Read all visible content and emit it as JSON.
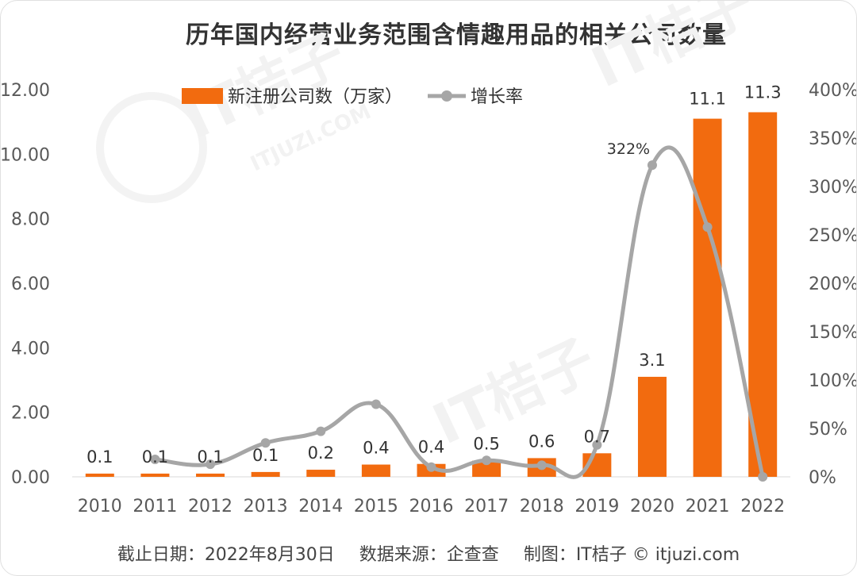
{
  "chart_data": {
    "type": "bar",
    "title": "历年国内经营业务范围含情趣用品的相关公司数量",
    "categories": [
      "2010",
      "2011",
      "2012",
      "2013",
      "2014",
      "2015",
      "2016",
      "2017",
      "2018",
      "2019",
      "2020",
      "2021",
      "2022"
    ],
    "series": [
      {
        "name": "新注册公司数（万家）",
        "type": "bar",
        "axis": "left",
        "values": [
          0.1,
          0.1,
          0.1,
          0.15,
          0.22,
          0.38,
          0.4,
          0.5,
          0.58,
          0.73,
          3.1,
          11.1,
          11.3
        ],
        "data_labels": [
          "0.1",
          "0.1",
          "0.1",
          "0.1",
          "0.2",
          "0.4",
          "0.4",
          "0.5",
          "0.6",
          "0.7",
          "3.1",
          "11.1",
          "11.3"
        ]
      },
      {
        "name": "增长率",
        "type": "line",
        "axis": "right",
        "values": [
          null,
          18,
          13,
          35,
          47,
          75,
          10,
          17,
          12,
          33,
          322,
          258,
          0
        ],
        "data_labels": {
          "2020": "322%"
        }
      }
    ],
    "y_left": {
      "ylim": [
        0,
        12
      ],
      "ticks": [
        "0.00",
        "2.00",
        "4.00",
        "6.00",
        "8.00",
        "10.00",
        "12.00"
      ]
    },
    "y_right": {
      "ylim": [
        0,
        400
      ],
      "ticks": [
        "0%",
        "50%",
        "100%",
        "150%",
        "200%",
        "250%",
        "300%",
        "350%",
        "400%"
      ]
    },
    "legend_position": "top-center",
    "colors": {
      "bar": "#f26b0f",
      "line": "#a6a6a6",
      "axis_text": "#595959",
      "title": "#333333"
    }
  },
  "footer": {
    "date": "截止日期：2022年8月30日",
    "source": "数据来源：企查查",
    "credit": "制图：IT桔子 © itjuzi.com"
  },
  "watermark": {
    "brand": "IT桔子",
    "domain": "ITJUZI.COM"
  }
}
